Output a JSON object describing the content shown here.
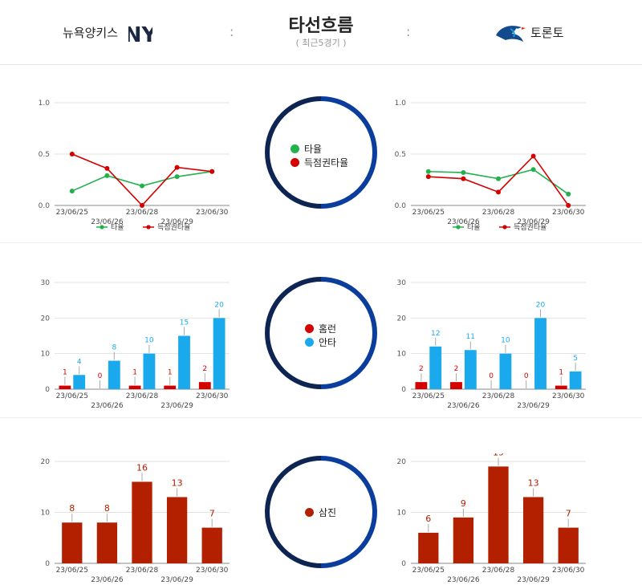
{
  "header": {
    "title": "타선흐름",
    "subtitle": "( 최근5경기 )",
    "team_left": "뉴욕양키스",
    "team_right": "토론토",
    "separator": ":"
  },
  "colors": {
    "ring_dark": "#0e2452",
    "ring_blue": "#0a3d9c",
    "green": "#22b14c",
    "red": "#d40000",
    "sky": "#1aa9ec",
    "rust": "#b32000"
  },
  "center_legends": {
    "avg": [
      "타율",
      "득점권타율"
    ],
    "hits": [
      "홈런",
      "안타"
    ],
    "so": [
      "삼진"
    ]
  },
  "chart_data": [
    {
      "id": "nyy_avg",
      "type": "line",
      "categories": [
        "23/06/25",
        "23/06/26",
        "23/06/28",
        "23/06/29",
        "23/06/30"
      ],
      "series": [
        {
          "name": "타율",
          "values": [
            0.14,
            0.29,
            0.19,
            0.28,
            0.33
          ]
        },
        {
          "name": "득점권타율",
          "values": [
            0.5,
            0.36,
            0.0,
            0.37,
            0.33
          ]
        }
      ],
      "yticks": [
        "0.0",
        "0.5",
        "1.0"
      ],
      "ylim": [
        0,
        1
      ],
      "legend": "bottom",
      "grid": true
    },
    {
      "id": "tor_avg",
      "type": "line",
      "categories": [
        "23/06/25",
        "23/06/26",
        "23/06/28",
        "23/06/29",
        "23/06/30"
      ],
      "series": [
        {
          "name": "타율",
          "values": [
            0.33,
            0.32,
            0.26,
            0.35,
            0.11
          ]
        },
        {
          "name": "득점권타율",
          "values": [
            0.28,
            0.26,
            0.13,
            0.48,
            0.0
          ]
        }
      ],
      "yticks": [
        "0.0",
        "0.5",
        "1.0"
      ],
      "ylim": [
        0,
        1
      ],
      "legend": "bottom",
      "grid": true
    },
    {
      "id": "nyy_hits",
      "type": "bar",
      "categories": [
        "23/06/25",
        "23/06/26",
        "23/06/28",
        "23/06/29",
        "23/06/30"
      ],
      "series": [
        {
          "name": "홈런",
          "values": [
            1,
            0,
            1,
            1,
            2
          ]
        },
        {
          "name": "안타",
          "values": [
            4,
            8,
            10,
            15,
            20
          ]
        }
      ],
      "yticks": [
        "0",
        "10",
        "20",
        "30"
      ],
      "ylim": [
        0,
        30
      ],
      "grid": true
    },
    {
      "id": "tor_hits",
      "type": "bar",
      "categories": [
        "23/06/25",
        "23/06/26",
        "23/06/28",
        "23/06/29",
        "23/06/30"
      ],
      "series": [
        {
          "name": "홈런",
          "values": [
            2,
            2,
            0,
            0,
            1
          ]
        },
        {
          "name": "안타",
          "values": [
            12,
            11,
            10,
            20,
            5
          ]
        }
      ],
      "yticks": [
        "0",
        "10",
        "20",
        "30"
      ],
      "ylim": [
        0,
        30
      ],
      "grid": true
    },
    {
      "id": "nyy_so",
      "type": "bar",
      "categories": [
        "23/06/25",
        "23/06/26",
        "23/06/28",
        "23/06/29",
        "23/06/30"
      ],
      "series": [
        {
          "name": "삼진",
          "values": [
            8,
            8,
            16,
            13,
            7
          ]
        }
      ],
      "yticks": [
        "0",
        "10",
        "20"
      ],
      "ylim": [
        0,
        20
      ],
      "grid": true
    },
    {
      "id": "tor_so",
      "type": "bar",
      "categories": [
        "23/06/25",
        "23/06/26",
        "23/06/28",
        "23/06/29",
        "23/06/30"
      ],
      "series": [
        {
          "name": "삼진",
          "values": [
            6,
            9,
            19,
            13,
            7
          ]
        }
      ],
      "yticks": [
        "0",
        "10",
        "20"
      ],
      "ylim": [
        0,
        20
      ],
      "grid": true
    }
  ]
}
